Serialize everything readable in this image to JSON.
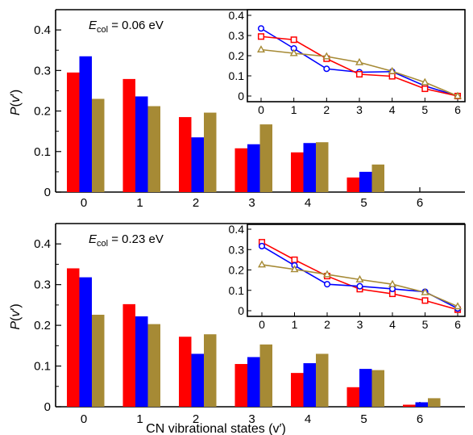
{
  "chart_data": [
    {
      "type": "bar",
      "panel": "top",
      "annotation": {
        "var": "E",
        "sub": "col",
        "rest": " = 0.06 eV"
      },
      "ylabel": {
        "p": "P(",
        "v": "v",
        "close": "′)"
      },
      "xlabel": "",
      "categories": [
        "0",
        "1",
        "2",
        "3",
        "4",
        "5",
        "6"
      ],
      "yticks": [
        "0",
        "0.1",
        "0.2",
        "0.3",
        "0.4"
      ],
      "ylim": [
        0,
        0.45
      ],
      "series": [
        {
          "color": "#ff0000",
          "values": [
            0.295,
            0.279,
            0.185,
            0.108,
            0.098,
            0.036,
            0.0
          ]
        },
        {
          "color": "#0000ff",
          "values": [
            0.335,
            0.236,
            0.135,
            0.118,
            0.121,
            0.05,
            0.0
          ]
        },
        {
          "color": "#a68a35",
          "values": [
            0.23,
            0.212,
            0.196,
            0.167,
            0.123,
            0.068,
            0.0
          ]
        }
      ],
      "inset": {
        "type": "line",
        "x": [
          0,
          1,
          2,
          3,
          4,
          5,
          6
        ],
        "xticks": [
          "0",
          "1",
          "2",
          "3",
          "4",
          "5",
          "6"
        ],
        "yticks": [
          "0",
          "0.1",
          "0.2",
          "0.3",
          "0.4"
        ],
        "ylim": [
          0,
          0.4
        ],
        "series": [
          {
            "color": "#0000ff",
            "marker": "circle",
            "values": [
              0.335,
              0.236,
              0.135,
              0.118,
              0.121,
              0.05,
              0.0
            ]
          },
          {
            "color": "#ff0000",
            "marker": "square",
            "values": [
              0.295,
              0.279,
              0.185,
              0.108,
              0.098,
              0.036,
              0.0
            ]
          },
          {
            "color": "#a68a35",
            "marker": "triangle",
            "values": [
              0.23,
              0.212,
              0.196,
              0.167,
              0.123,
              0.068,
              0.0
            ]
          }
        ]
      }
    },
    {
      "type": "bar",
      "panel": "bottom",
      "annotation": {
        "var": "E",
        "sub": "col",
        "rest": " = 0.23 eV"
      },
      "ylabel": {
        "p": "P(",
        "v": "v",
        "close": "′)"
      },
      "xlabel": "CN vibrational states (v′)",
      "categories": [
        "0",
        "1",
        "2",
        "3",
        "4",
        "5",
        "6"
      ],
      "yticks": [
        "0",
        "0.1",
        "0.2",
        "0.3",
        "0.4"
      ],
      "ylim": [
        0,
        0.45
      ],
      "series": [
        {
          "color": "#ff0000",
          "values": [
            0.34,
            0.252,
            0.172,
            0.105,
            0.083,
            0.048,
            0.005
          ]
        },
        {
          "color": "#0000ff",
          "values": [
            0.318,
            0.222,
            0.13,
            0.122,
            0.107,
            0.093,
            0.011
          ]
        },
        {
          "color": "#a68a35",
          "values": [
            0.226,
            0.203,
            0.178,
            0.153,
            0.13,
            0.09,
            0.021
          ]
        }
      ],
      "inset": {
        "type": "line",
        "x": [
          0,
          1,
          2,
          3,
          4,
          5,
          6
        ],
        "xticks": [
          "0",
          "1",
          "2",
          "3",
          "4",
          "5",
          "6"
        ],
        "yticks": [
          "0",
          "0.1",
          "0.2",
          "0.3",
          "0.4"
        ],
        "ylim": [
          0,
          0.4
        ],
        "series": [
          {
            "color": "#ff0000",
            "marker": "square",
            "values": [
              0.336,
              0.25,
              0.17,
              0.106,
              0.083,
              0.05,
              0.005
            ]
          },
          {
            "color": "#0000ff",
            "marker": "circle",
            "values": [
              0.317,
              0.222,
              0.13,
              0.12,
              0.107,
              0.093,
              0.011
            ]
          },
          {
            "color": "#a68a35",
            "marker": "triangle",
            "values": [
              0.226,
              0.203,
              0.178,
              0.153,
              0.13,
              0.09,
              0.021
            ]
          }
        ]
      }
    }
  ]
}
